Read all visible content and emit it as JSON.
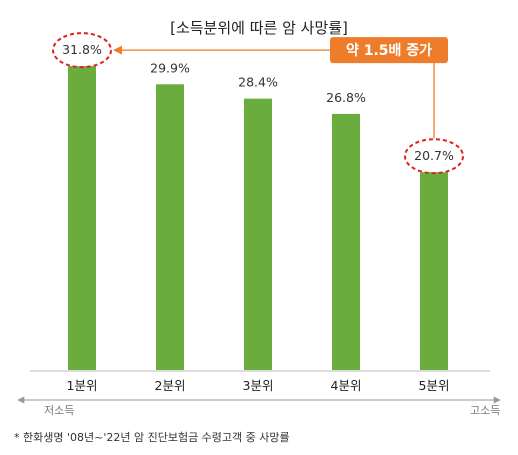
{
  "chart_data": {
    "type": "bar",
    "title": "[소득분위에 따른 암 사망률]",
    "categories": [
      "1분위",
      "2분위",
      "3분위",
      "4분위",
      "5분위"
    ],
    "values": [
      31.8,
      29.9,
      28.4,
      26.8,
      20.7
    ],
    "value_labels": [
      "31.8%",
      "29.9%",
      "28.4%",
      "26.8%",
      "20.7%"
    ],
    "ylim": [
      0,
      36
    ],
    "grid": false,
    "bar_color": "#6aac3d",
    "highlight_color": "#e02020",
    "callout": {
      "text": "약 1.5배 증가",
      "color": "#ee7d2b"
    },
    "axis_left_label": "저소득",
    "axis_right_label": "고소득",
    "footnote": "* 한화생명 '08년~'22년 암 진단보험금 수령고객 중 사망률"
  }
}
